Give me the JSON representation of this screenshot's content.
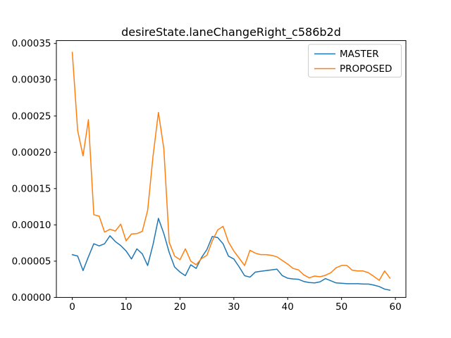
{
  "chart_data": {
    "type": "line",
    "title": "desireState.laneChangeRight_c586b2d",
    "xlabel": "",
    "ylabel": "",
    "grid": false,
    "xlim": [
      -2.95,
      61.95
    ],
    "ylim": [
      0,
      0.000354
    ],
    "x_ticks": [
      0,
      10,
      20,
      30,
      40,
      50,
      60
    ],
    "x_tick_labels": [
      "0",
      "10",
      "20",
      "30",
      "40",
      "50",
      "60"
    ],
    "y_ticks": [
      0,
      5e-05,
      0.0001,
      0.00015,
      0.0002,
      0.00025,
      0.0003,
      0.00035
    ],
    "y_tick_labels": [
      "0.00000",
      "0.00005",
      "0.00010",
      "0.00015",
      "0.00020",
      "0.00025",
      "0.00030",
      "0.00035"
    ],
    "legend": {
      "position": "upper-right",
      "frame_color": "#cccccc",
      "background": "#ffffff"
    },
    "x": [
      0,
      1,
      2,
      3,
      4,
      5,
      6,
      7,
      8,
      9,
      10,
      11,
      12,
      13,
      14,
      15,
      16,
      17,
      18,
      19,
      20,
      21,
      22,
      23,
      24,
      25,
      26,
      27,
      28,
      29,
      30,
      31,
      32,
      33,
      34,
      35,
      36,
      37,
      38,
      39,
      40,
      41,
      42,
      43,
      44,
      45,
      46,
      47,
      48,
      49,
      50,
      51,
      52,
      53,
      54,
      55,
      56,
      57,
      58,
      59
    ],
    "series": [
      {
        "name": "MASTER",
        "color": "#1f77b4",
        "values": [
          5.9e-05,
          5.7e-05,
          3.7e-05,
          5.6e-05,
          7.4e-05,
          7.1e-05,
          7.4e-05,
          8.5e-05,
          7.7e-05,
          7.15e-05,
          6.4e-05,
          5.3e-05,
          6.7e-05,
          6e-05,
          4.4e-05,
          7.3e-05,
          0.000109,
          8.8e-05,
          6.2e-05,
          4.2e-05,
          3.5e-05,
          3e-05,
          4.5e-05,
          4e-05,
          5.5e-05,
          6.6e-05,
          8.4e-05,
          8.25e-05,
          7.4e-05,
          5.7e-05,
          5.3e-05,
          4.2e-05,
          3e-05,
          2.8e-05,
          3.5e-05,
          3.6e-05,
          3.7e-05,
          3.8e-05,
          3.9e-05,
          3e-05,
          2.65e-05,
          2.55e-05,
          2.5e-05,
          2.2e-05,
          2.05e-05,
          2e-05,
          2.15e-05,
          2.6e-05,
          2.3e-05,
          2e-05,
          1.95e-05,
          1.9e-05,
          1.9e-05,
          1.9e-05,
          1.85e-05,
          1.85e-05,
          1.7e-05,
          1.5e-05,
          1.15e-05,
          1e-05
        ]
      },
      {
        "name": "PROPOSED",
        "color": "#ff7f0e",
        "values": [
          0.000338,
          0.00023,
          0.000195,
          0.000245,
          0.000114,
          0.000112,
          9e-05,
          9.4e-05,
          9.15e-05,
          0.000101,
          7.8e-05,
          8.75e-05,
          8.8e-05,
          9.1e-05,
          0.00012,
          0.000195,
          0.000255,
          0.000205,
          7.6e-05,
          5.7e-05,
          5.2e-05,
          6.7e-05,
          5e-05,
          4.5e-05,
          5.35e-05,
          5.8e-05,
          7.8e-05,
          9.3e-05,
          9.8e-05,
          7.65e-05,
          6.4e-05,
          5.4e-05,
          4.4e-05,
          6.5e-05,
          6.1e-05,
          5.9e-05,
          5.9e-05,
          5.8e-05,
          5.6e-05,
          5.1e-05,
          4.6e-05,
          4e-05,
          3.8e-05,
          3.1e-05,
          2.7e-05,
          2.95e-05,
          2.85e-05,
          3.05e-05,
          3.4e-05,
          4.1e-05,
          4.4e-05,
          4.4e-05,
          3.75e-05,
          3.65e-05,
          3.65e-05,
          3.4e-05,
          2.9e-05,
          2.35e-05,
          3.65e-05,
          2.65e-05
        ]
      }
    ]
  }
}
